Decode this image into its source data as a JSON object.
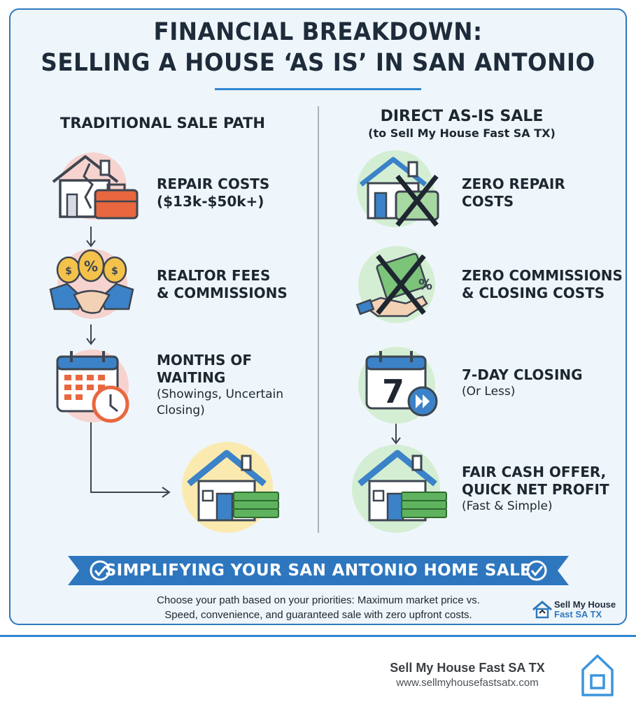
{
  "title": {
    "line1": "FINANCIAL BREAKDOWN:",
    "line2": "SELLING A HOUSE ‘AS IS’ IN SAN ANTONIO"
  },
  "left": {
    "heading": "TRADITIONAL SALE PATH",
    "steps": [
      {
        "title": "REPAIR COSTS",
        "title2": "($13k-$50k+)",
        "icon": "broken-house-toolbox-icon"
      },
      {
        "title": "REALTOR FEES",
        "title2": "& COMMISSIONS",
        "icon": "handshake-money-bags-icon"
      },
      {
        "title": "MONTHS OF",
        "title2": "WAITING",
        "detail1": "(Showings, Uncertain",
        "detail2": "Closing)",
        "icon": "calendar-clock-icon"
      }
    ],
    "result_icon": "house-cash-icon"
  },
  "right": {
    "heading": "DIRECT AS-IS SALE",
    "subheading": "(to Sell My House Fast SA TX)",
    "steps": [
      {
        "title": "ZERO REPAIR",
        "title2": "COSTS",
        "icon": "house-crossed-toolbox-icon"
      },
      {
        "title": "ZERO COMMISSIONS",
        "title2": "& CLOSING COSTS",
        "icon": "crossed-money-icon"
      },
      {
        "title": "7-DAY CLOSING",
        "detail1": "(Or Less)",
        "icon": "calendar-seven-fast-forward-icon",
        "calendar_number": "7"
      },
      {
        "title": "FAIR CASH OFFER,",
        "title2": "QUICK NET PROFIT",
        "detail1": "(Fast & Simple)",
        "icon": "house-cash-icon"
      }
    ]
  },
  "banner": {
    "text": "SIMPLIFYING YOUR SAN ANTONIO HOME SALE"
  },
  "note": {
    "line1": "Choose your path based on your priorities: Maximum market price vs.",
    "line2": "Speed, convenience, and guaranteed sale with zero upfront costs."
  },
  "mini_brand": {
    "line1": "Sell My House",
    "line2": "Fast SA TX"
  },
  "footer": {
    "name": "Sell My House Fast SA TX",
    "url": "www.sellmyhousefastsatx.com"
  },
  "colors": {
    "accent": "#2f78bd",
    "banner": "#2e77bf",
    "pink": "#f6d3cf",
    "green": "#d4eed3",
    "yellow": "#fbeab0",
    "orange": "#e8673f"
  }
}
